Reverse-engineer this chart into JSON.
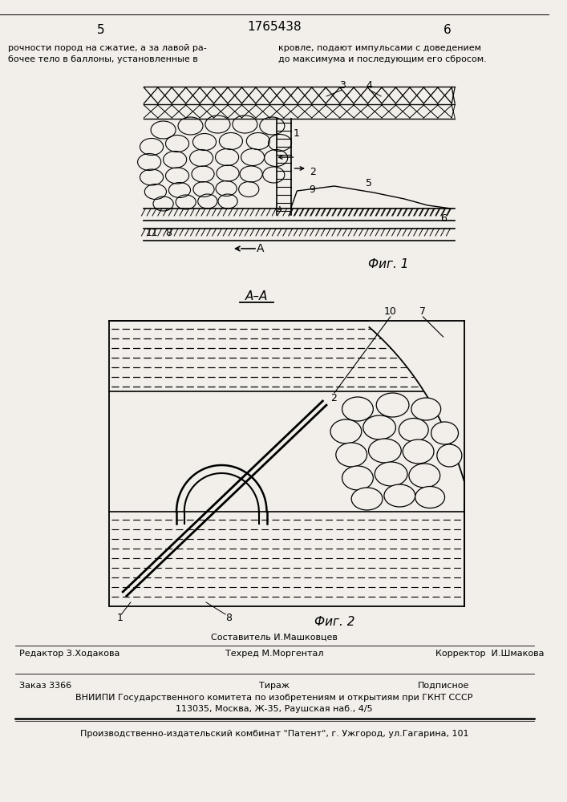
{
  "page_color": "#f2efea",
  "fig1_label": "Фиг. 1",
  "fig2_label": "Фиг. 2",
  "footer_editor": "Редактор З.Ходакова",
  "footer_sostavitel": "Составитель И.Машковцев",
  "footer_tehred": "Техред М.Моргентал",
  "footer_corrector": "Корректор  И.Шмакова",
  "footer_order": "Заказ 3366",
  "footer_tirazh": "Тираж",
  "footer_podpisnoe": "Подписное",
  "footer_vniipni": "ВНИИПИ Государственного комитета по изобретениям и открытиям при ГКНТ СССР",
  "footer_address": "113035, Москва, Ж-35, Раушская наб., 4/5",
  "footer_patent": "Производственно-издательский комбинат \"Патент\", г. Ужгород, ул.Гагарина, 101"
}
